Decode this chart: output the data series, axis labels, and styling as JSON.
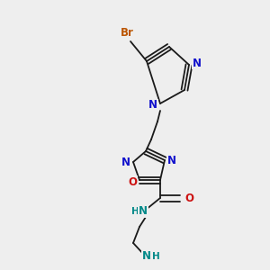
{
  "bg_color": "#eeeeee",
  "bond_color": "#1a1a1a",
  "bond_width": 1.3,
  "atom_colors": {
    "N": "#1111cc",
    "O": "#cc1111",
    "Br": "#bb5500",
    "F": "#cc00cc",
    "NH": "#008888"
  },
  "font_size": 7.5
}
